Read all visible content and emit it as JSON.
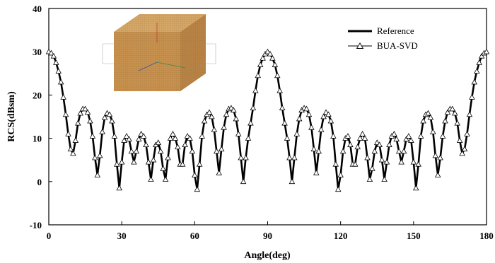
{
  "chart_data": {
    "type": "line",
    "title": "",
    "xlabel": "Angle(deg)",
    "ylabel": "RCS(dBsm)",
    "xlim": [
      0,
      180
    ],
    "ylim": [
      -10,
      40
    ],
    "xticks": [
      0,
      30,
      60,
      90,
      120,
      150,
      180
    ],
    "yticks": [
      -10,
      0,
      10,
      20,
      30,
      40
    ],
    "grid": false,
    "legend_position": "top-right",
    "inset": "cube-mesh-image",
    "x": [
      0,
      1,
      2,
      3,
      4,
      5,
      6,
      7,
      8,
      9,
      10,
      11,
      12,
      13,
      14,
      15,
      16,
      17,
      18,
      19,
      20,
      21,
      22,
      23,
      24,
      25,
      26,
      27,
      28,
      29,
      30,
      31,
      32,
      33,
      34,
      35,
      36,
      37,
      38,
      39,
      40,
      41,
      42,
      43,
      44,
      45,
      46,
      47,
      48,
      49,
      50,
      51,
      52,
      53,
      54,
      55,
      56,
      57,
      58,
      59,
      60,
      61,
      62,
      63,
      64,
      65,
      66,
      67,
      68,
      69,
      70,
      71,
      72,
      73,
      74,
      75,
      76,
      77,
      78,
      79,
      80,
      81,
      82,
      83,
      84,
      85,
      86,
      87,
      88,
      89,
      90,
      91,
      92,
      93,
      94,
      95,
      96,
      97,
      98,
      99,
      100,
      101,
      102,
      103,
      104,
      105,
      106,
      107,
      108,
      109,
      110,
      111,
      112,
      113,
      114,
      115,
      116,
      117,
      118,
      119,
      120,
      121,
      122,
      123,
      124,
      125,
      126,
      127,
      128,
      129,
      130,
      131,
      132,
      133,
      134,
      135,
      136,
      137,
      138,
      139,
      140,
      141,
      142,
      143,
      144,
      145,
      146,
      147,
      148,
      149,
      150,
      151,
      152,
      153,
      154,
      155,
      156,
      157,
      158,
      159,
      160,
      161,
      162,
      163,
      164,
      165,
      166,
      167,
      168,
      169,
      170,
      171,
      172,
      173,
      174,
      175,
      176,
      177,
      178,
      179,
      180
    ],
    "series": [
      {
        "name": "Reference",
        "style": "line",
        "color": "#000000",
        "values": [
          30,
          29.7,
          29,
          27.5,
          25.5,
          23,
          19.5,
          15.5,
          11,
          7.5,
          6.5,
          9.5,
          13.5,
          15.8,
          16.8,
          16.8,
          16,
          14,
          10.5,
          5.5,
          1.5,
          6,
          11.5,
          14.8,
          15.8,
          15.5,
          14,
          10.5,
          4,
          -1.5,
          4.5,
          9.5,
          10.5,
          9.8,
          7,
          4.5,
          7,
          9.8,
          11,
          10.5,
          8.5,
          4.5,
          0.5,
          5,
          8.5,
          9,
          7,
          3,
          0.5,
          5.5,
          10,
          11,
          10,
          8,
          4,
          4,
          8.5,
          10.5,
          10,
          7,
          1.5,
          -1.8,
          4,
          10.5,
          14,
          15.5,
          16,
          15,
          12,
          7,
          2,
          7.5,
          12.5,
          15.5,
          16.8,
          17,
          16.5,
          14.5,
          11,
          5.5,
          0,
          5.5,
          10,
          13.5,
          17,
          21,
          24.5,
          27,
          28.5,
          29.5,
          30,
          29.5,
          28.5,
          27,
          24.5,
          21,
          17,
          13.5,
          10,
          5.5,
          0,
          5.5,
          11,
          14.5,
          16.5,
          17,
          16.8,
          15.5,
          12.5,
          7.5,
          2,
          7,
          12,
          15,
          16,
          15.5,
          14,
          10.5,
          4,
          -1.8,
          1.5,
          7,
          10,
          10.5,
          8.5,
          4,
          4,
          8,
          10,
          11,
          10,
          5.5,
          0.5,
          3,
          7,
          9,
          8.5,
          5,
          0.5,
          4.5,
          8.5,
          10.5,
          11,
          9.8,
          7,
          4.5,
          7,
          9.8,
          10.5,
          9.5,
          4.5,
          -1.5,
          4,
          10.5,
          14,
          15.5,
          15.8,
          14.8,
          11.5,
          6,
          1.5,
          5.5,
          10.5,
          14,
          16,
          16.8,
          16.8,
          15.8,
          13.5,
          9.5,
          6.5,
          7.5,
          11,
          15.5,
          19.5,
          23,
          25.5,
          27.5,
          29,
          29.7,
          30
        ]
      },
      {
        "name": "BUA-SVD",
        "style": "line-triangle-markers",
        "color": "#000000",
        "values": [
          30,
          29.7,
          29,
          27.5,
          25.5,
          23,
          19.5,
          15.5,
          11,
          7.5,
          6.5,
          9.5,
          13.5,
          15.8,
          16.8,
          16.8,
          16,
          14,
          10.5,
          5.5,
          1.5,
          6,
          11.5,
          14.8,
          15.8,
          15.5,
          14,
          10.5,
          4,
          -1.5,
          4.5,
          9.5,
          10.5,
          9.8,
          7,
          4.5,
          7,
          9.8,
          11,
          10.5,
          8.5,
          4.5,
          0.5,
          5,
          8.5,
          9,
          7,
          3,
          0.5,
          5.5,
          10,
          11,
          10,
          8,
          4,
          4,
          8.5,
          10.5,
          10,
          7,
          1.5,
          -1.8,
          4,
          10.5,
          14,
          15.5,
          16,
          15,
          12,
          7,
          2,
          7.5,
          12.5,
          15.5,
          16.8,
          17,
          16.5,
          14.5,
          11,
          5.5,
          0,
          5.5,
          10,
          13.5,
          17,
          21,
          24.5,
          27,
          28.5,
          29.5,
          30,
          29.5,
          28.5,
          27,
          24.5,
          21,
          17,
          13.5,
          10,
          5.5,
          0,
          5.5,
          11,
          14.5,
          16.5,
          17,
          16.8,
          15.5,
          12.5,
          7.5,
          2,
          7,
          12,
          15,
          16,
          15.5,
          14,
          10.5,
          4,
          -1.8,
          1.5,
          7,
          10,
          10.5,
          8.5,
          4,
          4,
          8,
          10,
          11,
          10,
          5.5,
          0.5,
          3,
          7,
          9,
          8.5,
          5,
          0.5,
          4.5,
          8.5,
          10.5,
          11,
          9.8,
          7,
          4.5,
          7,
          9.8,
          10.5,
          9.5,
          4.5,
          -1.5,
          4,
          10.5,
          14,
          15.5,
          15.8,
          14.8,
          11.5,
          6,
          1.5,
          5.5,
          10.5,
          14,
          16,
          16.8,
          16.8,
          15.8,
          13.5,
          9.5,
          6.5,
          7.5,
          11,
          15.5,
          19.5,
          23,
          25.5,
          27.5,
          29,
          29.7,
          30
        ]
      }
    ]
  }
}
